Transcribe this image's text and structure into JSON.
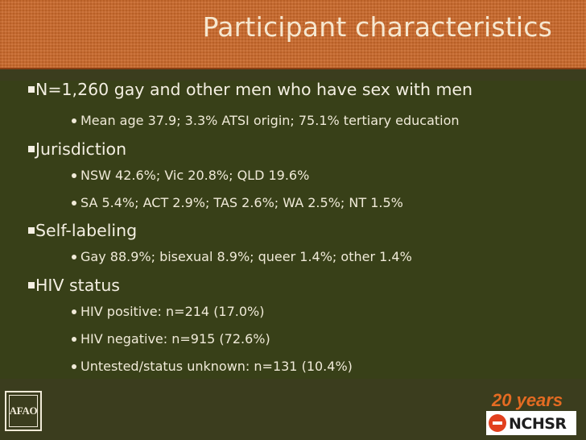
{
  "slide": {
    "title": "Participant characteristics",
    "bullets": [
      {
        "text": "N=1,260 gay and other men who have sex with men",
        "subs": [
          "Mean age 37.9; 3.3% ATSI origin; 75.1% tertiary education"
        ]
      },
      {
        "text": "Jurisdiction",
        "subs": [
          "NSW 42.6%; Vic 20.8%; QLD 19.6%",
          "SA 5.4%; ACT 2.9%; TAS 2.6%; WA 2.5%; NT 1.5%"
        ]
      },
      {
        "text": "Self-labeling",
        "subs": [
          "Gay 88.9%; bisexual 8.9%; queer 1.4%; other 1.4%"
        ]
      },
      {
        "text": "HIV status",
        "subs": [
          "HIV positive: n=214 (17.0%)",
          "HIV negative: n=915 (72.6%)",
          "Untested/status unknown: n=131 (10.4%)"
        ]
      }
    ]
  },
  "logos": {
    "afao_text": "AFAO",
    "anniversary_text": "20 years",
    "nchsr_text": "NCHSR"
  },
  "colors": {
    "header_bg": "#c9682a",
    "body_bg": "#384018",
    "text": "#f4efe2",
    "accent_orange": "#e46b22",
    "nchsr_red": "#e2401e"
  }
}
